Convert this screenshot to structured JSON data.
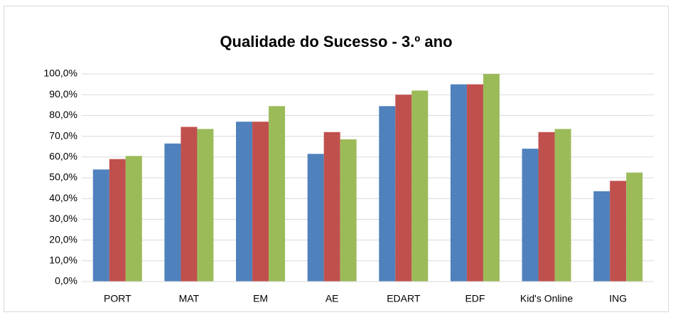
{
  "chart_data": {
    "type": "bar",
    "title": "Qualidade do Sucesso - 3.º ano",
    "categories": [
      "PORT",
      "MAT",
      "EM",
      "AE",
      "EDART",
      "EDF",
      "Kid's Online",
      "ING"
    ],
    "series": [
      {
        "color": "#4f81bd",
        "values": [
          54,
          66.5,
          77,
          61.5,
          84.5,
          95,
          64,
          43.5
        ]
      },
      {
        "color": "#c0504d",
        "values": [
          59,
          74.5,
          77,
          72,
          90,
          95,
          72,
          48.5
        ]
      },
      {
        "color": "#9bbb59",
        "values": [
          60.5,
          73.5,
          84.5,
          68.5,
          92,
          100,
          73.5,
          52.5
        ]
      }
    ],
    "ylim": [
      0,
      100
    ],
    "yticks": [
      {
        "value": 0,
        "label": "0,0%"
      },
      {
        "value": 10,
        "label": "10,0%"
      },
      {
        "value": 20,
        "label": "20,0%"
      },
      {
        "value": 30,
        "label": "30,0%"
      },
      {
        "value": 40,
        "label": "40,0%"
      },
      {
        "value": 50,
        "label": "50,0%"
      },
      {
        "value": 60,
        "label": "60,0%"
      },
      {
        "value": 70,
        "label": "70,0%"
      },
      {
        "value": 80,
        "label": "80,0%"
      },
      {
        "value": 90,
        "label": "90,0%"
      },
      {
        "value": 100,
        "label": "100,0%"
      }
    ],
    "grid": true
  }
}
